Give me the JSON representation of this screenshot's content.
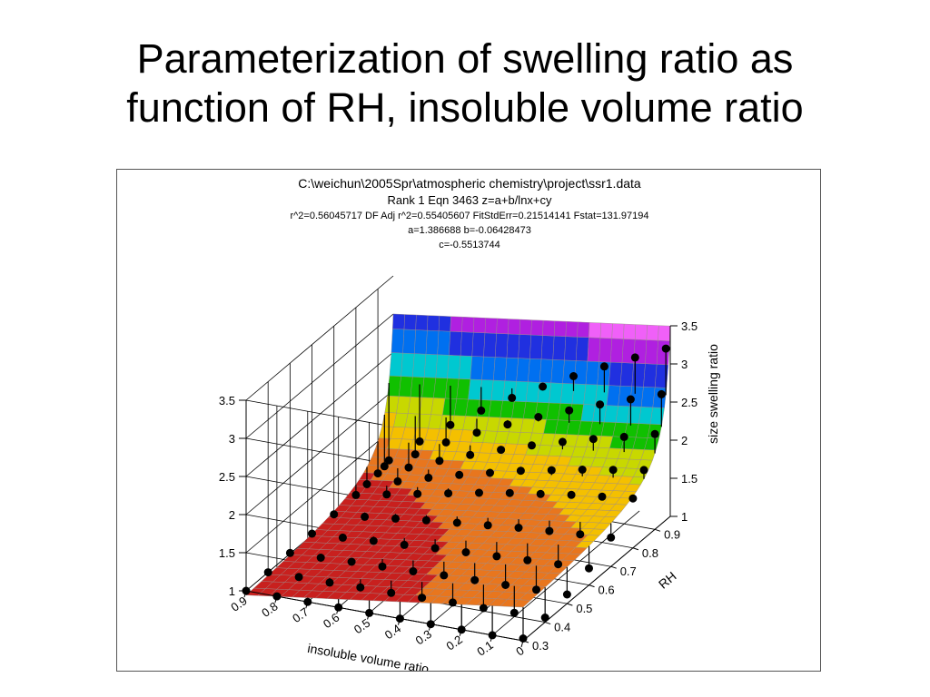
{
  "slide": {
    "title_line1": "Parameterization of swelling ratio as",
    "title_line2": "function of RH, insoluble volume ratio"
  },
  "chart_data": {
    "type": "surface3d",
    "header": {
      "file": "C:\\weichun\\2005Spr\\atmospheric chemistry\\project\\ssr1.data",
      "rank": "Rank 1  Eqn 3463  z=a+b/lnx+cy",
      "stats": "r^2=0.56045717  DF Adj r^2=0.55405607  FitStdErr=0.21514141  Fstat=131.97194",
      "coef_ab": "a=1.386688 b=-0.06428473",
      "coef_c": "c=-0.5513744"
    },
    "equation": "z=a+b/lnx+cy",
    "coefficients": {
      "a": 1.386688,
      "b": -0.06428473,
      "c": -0.5513744
    },
    "x_axis": {
      "label": "RH",
      "ticks": [
        "0.3",
        "0.4",
        "0.5",
        "0.6",
        "0.7",
        "0.8",
        "0.9"
      ],
      "range": [
        0.3,
        0.97
      ]
    },
    "y_axis": {
      "label": "insoluble volume ratio",
      "ticks": [
        "0",
        "0.1",
        "0.2",
        "0.3",
        "0.4",
        "0.5",
        "0.6",
        "0.7",
        "0.8",
        "0.9"
      ],
      "range": [
        0,
        0.9
      ]
    },
    "z_axis": {
      "label": "size swelling ratio",
      "ticks": [
        "1",
        "1.5",
        "2",
        "2.5",
        "3",
        "3.5"
      ],
      "range": [
        1,
        3.5
      ]
    },
    "grid": true,
    "colormap": [
      "#c8201e",
      "#e8761e",
      "#f4c000",
      "#c8d800",
      "#10c000",
      "#00c8d0",
      "#0070f0",
      "#2030e0",
      "#b020e0",
      "#f060f8"
    ],
    "data_points_description_free": true,
    "observations": [
      {
        "rh": 0.3,
        "ivr": 0,
        "z": 1.03
      },
      {
        "rh": 0.3,
        "ivr": 0.1,
        "z": 1.0
      },
      {
        "rh": 0.3,
        "ivr": 0.2,
        "z": 1.0
      },
      {
        "rh": 0.3,
        "ivr": 0.3,
        "z": 1.0
      },
      {
        "rh": 0.3,
        "ivr": 0.4,
        "z": 1.0
      },
      {
        "rh": 0.3,
        "ivr": 0.5,
        "z": 1.0
      },
      {
        "rh": 0.3,
        "ivr": 0.6,
        "z": 1.0
      },
      {
        "rh": 0.3,
        "ivr": 0.7,
        "z": 1.0
      },
      {
        "rh": 0.3,
        "ivr": 0.8,
        "z": 1.0
      },
      {
        "rh": 0.3,
        "ivr": 0.9,
        "z": 1.0
      },
      {
        "rh": 0.4,
        "ivr": 0,
        "z": 1.06
      },
      {
        "rh": 0.4,
        "ivr": 0.1,
        "z": 1.05
      },
      {
        "rh": 0.4,
        "ivr": 0.2,
        "z": 1.04
      },
      {
        "rh": 0.4,
        "ivr": 0.3,
        "z": 1.04
      },
      {
        "rh": 0.4,
        "ivr": 0.4,
        "z": 1.03
      },
      {
        "rh": 0.4,
        "ivr": 0.5,
        "z": 1.02
      },
      {
        "rh": 0.4,
        "ivr": 0.6,
        "z": 1.02
      },
      {
        "rh": 0.4,
        "ivr": 0.7,
        "z": 1.01
      },
      {
        "rh": 0.4,
        "ivr": 0.8,
        "z": 1.01
      },
      {
        "rh": 0.4,
        "ivr": 0.9,
        "z": 1.0
      },
      {
        "rh": 0.5,
        "ivr": 0,
        "z": 1.12
      },
      {
        "rh": 0.5,
        "ivr": 0.1,
        "z": 1.11
      },
      {
        "rh": 0.5,
        "ivr": 0.2,
        "z": 1.1
      },
      {
        "rh": 0.5,
        "ivr": 0.3,
        "z": 1.09
      },
      {
        "rh": 0.5,
        "ivr": 0.4,
        "z": 1.08
      },
      {
        "rh": 0.5,
        "ivr": 0.5,
        "z": 1.06
      },
      {
        "rh": 0.5,
        "ivr": 0.6,
        "z": 1.05
      },
      {
        "rh": 0.5,
        "ivr": 0.7,
        "z": 1.04
      },
      {
        "rh": 0.5,
        "ivr": 0.8,
        "z": 1.02
      },
      {
        "rh": 0.5,
        "ivr": 0.9,
        "z": 1.01
      },
      {
        "rh": 0.6,
        "ivr": 0,
        "z": 1.22
      },
      {
        "rh": 0.6,
        "ivr": 0.1,
        "z": 1.2
      },
      {
        "rh": 0.6,
        "ivr": 0.2,
        "z": 1.18
      },
      {
        "rh": 0.6,
        "ivr": 0.3,
        "z": 1.16
      },
      {
        "rh": 0.6,
        "ivr": 0.4,
        "z": 1.14
      },
      {
        "rh": 0.6,
        "ivr": 0.5,
        "z": 1.12
      },
      {
        "rh": 0.6,
        "ivr": 0.6,
        "z": 1.09
      },
      {
        "rh": 0.6,
        "ivr": 0.7,
        "z": 1.07
      },
      {
        "rh": 0.6,
        "ivr": 0.8,
        "z": 1.04
      },
      {
        "rh": 0.6,
        "ivr": 0.9,
        "z": 1.02
      },
      {
        "rh": 0.7,
        "ivr": 0,
        "z": 1.38
      },
      {
        "rh": 0.7,
        "ivr": 0.1,
        "z": 1.35
      },
      {
        "rh": 0.7,
        "ivr": 0.2,
        "z": 1.32
      },
      {
        "rh": 0.7,
        "ivr": 0.3,
        "z": 1.29
      },
      {
        "rh": 0.7,
        "ivr": 0.4,
        "z": 1.25
      },
      {
        "rh": 0.7,
        "ivr": 0.5,
        "z": 1.21
      },
      {
        "rh": 0.7,
        "ivr": 0.6,
        "z": 1.17
      },
      {
        "rh": 0.7,
        "ivr": 0.7,
        "z": 1.12
      },
      {
        "rh": 0.7,
        "ivr": 0.8,
        "z": 1.07
      },
      {
        "rh": 0.7,
        "ivr": 0.9,
        "z": 1.03
      },
      {
        "rh": 0.8,
        "ivr": 0,
        "z": 1.65
      },
      {
        "rh": 0.8,
        "ivr": 0.1,
        "z": 1.6
      },
      {
        "rh": 0.8,
        "ivr": 0.2,
        "z": 1.55
      },
      {
        "rh": 0.8,
        "ivr": 0.3,
        "z": 1.49
      },
      {
        "rh": 0.8,
        "ivr": 0.4,
        "z": 1.43
      },
      {
        "rh": 0.8,
        "ivr": 0.5,
        "z": 1.36
      },
      {
        "rh": 0.8,
        "ivr": 0.6,
        "z": 1.28
      },
      {
        "rh": 0.8,
        "ivr": 0.7,
        "z": 1.2
      },
      {
        "rh": 0.8,
        "ivr": 0.8,
        "z": 1.12
      },
      {
        "rh": 0.8,
        "ivr": 0.9,
        "z": 1.04
      },
      {
        "rh": 0.85,
        "ivr": 0,
        "z": 1.9
      },
      {
        "rh": 0.85,
        "ivr": 0.1,
        "z": 1.83
      },
      {
        "rh": 0.85,
        "ivr": 0.2,
        "z": 1.76
      },
      {
        "rh": 0.85,
        "ivr": 0.3,
        "z": 1.68
      },
      {
        "rh": 0.85,
        "ivr": 0.4,
        "z": 1.6
      },
      {
        "rh": 0.85,
        "ivr": 0.5,
        "z": 1.5
      },
      {
        "rh": 0.85,
        "ivr": 0.6,
        "z": 1.4
      },
      {
        "rh": 0.85,
        "ivr": 0.7,
        "z": 1.29
      },
      {
        "rh": 0.85,
        "ivr": 0.8,
        "z": 1.17
      },
      {
        "rh": 0.85,
        "ivr": 0.9,
        "z": 1.06
      },
      {
        "rh": 0.9,
        "ivr": 0,
        "z": 2.25
      },
      {
        "rh": 0.9,
        "ivr": 0.1,
        "z": 2.14
      },
      {
        "rh": 0.9,
        "ivr": 0.2,
        "z": 2.04
      },
      {
        "rh": 0.9,
        "ivr": 0.3,
        "z": 1.93
      },
      {
        "rh": 0.9,
        "ivr": 0.4,
        "z": 1.81
      },
      {
        "rh": 0.9,
        "ivr": 0.5,
        "z": 1.68
      },
      {
        "rh": 0.9,
        "ivr": 0.6,
        "z": 1.54
      },
      {
        "rh": 0.9,
        "ivr": 0.7,
        "z": 1.39
      },
      {
        "rh": 0.9,
        "ivr": 0.8,
        "z": 1.23
      },
      {
        "rh": 0.9,
        "ivr": 0.9,
        "z": 1.08
      },
      {
        "rh": 0.93,
        "ivr": 0,
        "z": 2.7
      },
      {
        "rh": 0.93,
        "ivr": 0.1,
        "z": 2.56
      },
      {
        "rh": 0.93,
        "ivr": 0.2,
        "z": 2.42
      },
      {
        "rh": 0.93,
        "ivr": 0.3,
        "z": 2.27
      },
      {
        "rh": 0.93,
        "ivr": 0.4,
        "z": 2.11
      },
      {
        "rh": 0.93,
        "ivr": 0.5,
        "z": 1.94
      },
      {
        "rh": 0.93,
        "ivr": 0.6,
        "z": 1.76
      },
      {
        "rh": 0.93,
        "ivr": 0.7,
        "z": 1.56
      },
      {
        "rh": 0.93,
        "ivr": 0.8,
        "z": 1.33
      },
      {
        "rh": 0.93,
        "ivr": 0.9,
        "z": 1.1
      },
      {
        "rh": 0.95,
        "ivr": 0,
        "z": 3.25
      },
      {
        "rh": 0.95,
        "ivr": 0.1,
        "z": 3.06
      },
      {
        "rh": 0.95,
        "ivr": 0.2,
        "z": 2.87
      },
      {
        "rh": 0.95,
        "ivr": 0.3,
        "z": 2.67
      },
      {
        "rh": 0.95,
        "ivr": 0.4,
        "z": 2.46
      },
      {
        "rh": 0.95,
        "ivr": 0.5,
        "z": 2.24
      },
      {
        "rh": 0.95,
        "ivr": 0.6,
        "z": 2.0
      },
      {
        "rh": 0.95,
        "ivr": 0.7,
        "z": 1.74
      },
      {
        "rh": 0.95,
        "ivr": 0.8,
        "z": 1.45
      },
      {
        "rh": 0.95,
        "ivr": 0.9,
        "z": 1.13
      }
    ]
  }
}
